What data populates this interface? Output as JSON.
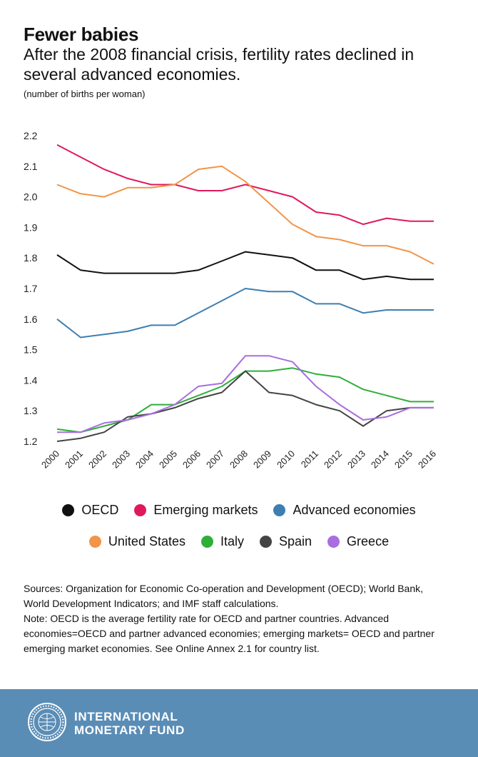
{
  "header": {
    "title": "Fewer babies",
    "subtitle": "After the 2008 financial crisis, fertility rates declined in several advanced economies.",
    "unit": "(number of births per woman)"
  },
  "chart_data": {
    "type": "line",
    "title": "Fewer babies",
    "subtitle": "After the 2008 financial crisis, fertility rates declined in several advanced economies.",
    "ylabel": "(number of births per woman)",
    "xlabel": "",
    "ylim": [
      1.2,
      2.2
    ],
    "yticks": [
      "1.2",
      "1.3",
      "1.4",
      "1.5",
      "1.6",
      "1.7",
      "1.8",
      "1.9",
      "2.0",
      "2.1",
      "2.2"
    ],
    "grid": false,
    "legend_position": "bottom",
    "x": [
      "2000",
      "2001",
      "2002",
      "2003",
      "2004",
      "2005",
      "2006",
      "2007",
      "2008",
      "2009",
      "2010",
      "2011",
      "2012",
      "2013",
      "2014",
      "2015",
      "2016"
    ],
    "series": [
      {
        "name": "OECD",
        "color": "#111111",
        "values": [
          1.81,
          1.76,
          1.75,
          1.75,
          1.75,
          1.75,
          1.76,
          1.79,
          1.82,
          1.81,
          1.8,
          1.76,
          1.76,
          1.73,
          1.74,
          1.73,
          1.73
        ]
      },
      {
        "name": "Emerging markets",
        "color": "#e0195c",
        "values": [
          2.17,
          2.13,
          2.09,
          2.06,
          2.04,
          2.04,
          2.02,
          2.02,
          2.04,
          2.02,
          2.0,
          1.95,
          1.94,
          1.91,
          1.93,
          1.92,
          1.92
        ]
      },
      {
        "name": "Advanced economies",
        "color": "#3d7fb0",
        "values": [
          1.6,
          1.54,
          1.55,
          1.56,
          1.58,
          1.58,
          1.62,
          1.66,
          1.7,
          1.69,
          1.69,
          1.65,
          1.65,
          1.62,
          1.63,
          1.63,
          1.63
        ]
      },
      {
        "name": "United States",
        "color": "#f0954a",
        "values": [
          2.04,
          2.01,
          2.0,
          2.03,
          2.03,
          2.04,
          2.09,
          2.1,
          2.05,
          1.98,
          1.91,
          1.87,
          1.86,
          1.84,
          1.84,
          1.82,
          1.78
        ]
      },
      {
        "name": "Italy",
        "color": "#2fae3a",
        "values": [
          1.24,
          1.23,
          1.25,
          1.27,
          1.32,
          1.32,
          1.35,
          1.38,
          1.43,
          1.43,
          1.44,
          1.42,
          1.41,
          1.37,
          1.35,
          1.33,
          1.33
        ]
      },
      {
        "name": "Spain",
        "color": "#444444",
        "values": [
          1.2,
          1.21,
          1.23,
          1.28,
          1.29,
          1.31,
          1.34,
          1.36,
          1.43,
          1.36,
          1.35,
          1.32,
          1.3,
          1.25,
          1.3,
          1.31,
          1.31
        ]
      },
      {
        "name": "Greece",
        "color": "#a86ee0",
        "values": [
          1.23,
          1.23,
          1.26,
          1.27,
          1.29,
          1.32,
          1.38,
          1.39,
          1.48,
          1.48,
          1.46,
          1.38,
          1.32,
          1.27,
          1.28,
          1.31,
          1.31
        ]
      }
    ]
  },
  "legend_rows": [
    [
      "OECD",
      "Emerging markets",
      "Advanced economies"
    ],
    [
      "United States",
      "Italy",
      "Spain",
      "Greece"
    ]
  ],
  "notes": {
    "sources": "Sources: Organization for Economic Co-operation and Development (OECD); World Bank, World Development Indicators; and IMF staff calculations.",
    "note": "Note: OECD is the average fertility rate for OECD and partner countries. Advanced economies=OECD and partner advanced economies; emerging markets= OECD and partner emerging market economies. See Online Annex 2.1 for country list."
  },
  "footer": {
    "org_line1": "INTERNATIONAL",
    "org_line2": "MONETARY FUND",
    "logo_icon": "imf-seal-icon"
  }
}
